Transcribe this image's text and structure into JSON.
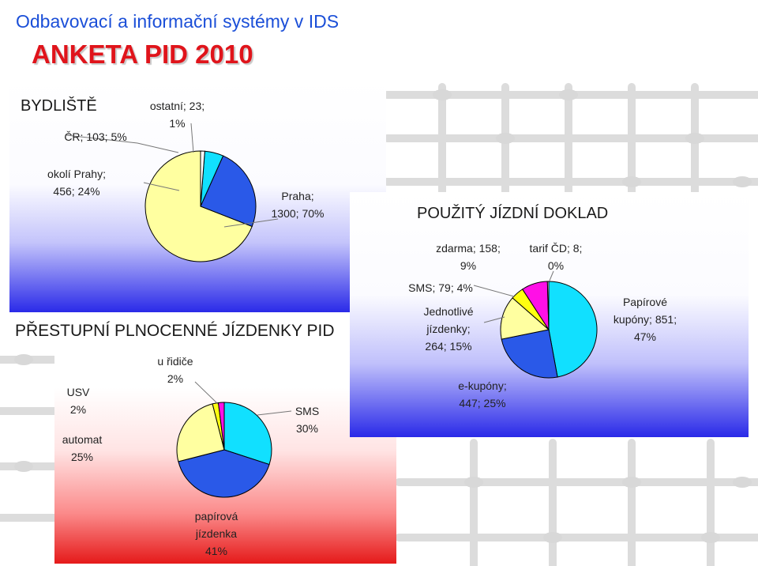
{
  "header": {
    "title": "Odbavovací a informační systémy v IDS",
    "subtitle": "ANKETA PID 2010"
  },
  "colors": {
    "title_blue": "#1b4fd8",
    "subtitle_red": "#e0141b",
    "panel_blue": "#2a2ae8",
    "panel_red": "#e51a1a",
    "slice_yellow": "#ffffa0",
    "slice_blue": "#2a59e8",
    "slice_cyan": "#11e0ff",
    "slice_magenta": "#ff10e6"
  },
  "chart_data": [
    {
      "type": "pie",
      "title": "BYDLIŠTĚ",
      "slices": [
        {
          "label": "Praha",
          "value": 1300,
          "percent": 70,
          "color": "#ffffa0"
        },
        {
          "label": "okolí Prahy",
          "value": 456,
          "percent": 24,
          "color": "#2a59e8"
        },
        {
          "label": "ČR",
          "value": 103,
          "percent": 5,
          "color": "#11e0ff"
        },
        {
          "label": "ostatní",
          "value": 23,
          "percent": 1,
          "color": "#ffffff"
        }
      ],
      "labels": {
        "praha": [
          "Praha;",
          "1300; 70%"
        ],
        "okoli": [
          "okolí Prahy;",
          "456; 24%"
        ],
        "cr": [
          "ČR; 103; 5%"
        ],
        "ostatni": [
          "ostatní; 23;",
          "1%"
        ]
      }
    },
    {
      "type": "pie",
      "title": "PŘESTUPNÍ PLNOCENNÉ JÍZDENKY PID",
      "slices": [
        {
          "label": "SMS",
          "percent": 30,
          "color": "#11e0ff"
        },
        {
          "label": "papírová jízdenka",
          "percent": 41,
          "color": "#2a59e8"
        },
        {
          "label": "automat",
          "percent": 25,
          "color": "#ffffa0"
        },
        {
          "label": "USV",
          "percent": 2,
          "color": "#ffff10"
        },
        {
          "label": "u řidiče",
          "percent": 2,
          "color": "#ff10e6"
        }
      ],
      "labels": {
        "usv": [
          "USV",
          "2%"
        ],
        "automat": [
          "automat",
          "25%"
        ],
        "ridic": [
          "u řidiče",
          "2%"
        ],
        "sms": [
          "SMS",
          "30%"
        ],
        "papirova": [
          "papírová",
          "jízdenka",
          "41%"
        ]
      }
    },
    {
      "type": "pie",
      "title": "POUŽITÝ JÍZDNÍ DOKLAD",
      "slices": [
        {
          "label": "Papírové kupóny",
          "value": 851,
          "percent": 47,
          "color": "#11e0ff"
        },
        {
          "label": "e-kupóny",
          "value": 447,
          "percent": 25,
          "color": "#2a59e8"
        },
        {
          "label": "Jednotlivé jízdenky",
          "value": 264,
          "percent": 15,
          "color": "#ffffa0"
        },
        {
          "label": "SMS",
          "value": 79,
          "percent": 4,
          "color": "#ffff10"
        },
        {
          "label": "zdarma",
          "value": 158,
          "percent": 9,
          "color": "#ff10e6"
        },
        {
          "label": "tarif ČD",
          "value": 8,
          "percent": 0,
          "color": "#ffffff"
        }
      ],
      "labels": {
        "zdarma": [
          "zdarma; 158;",
          "9%"
        ],
        "tarif": [
          "tarif ČD; 8;",
          "0%"
        ],
        "sms": [
          "SMS; 79; 4%"
        ],
        "jednotlive": [
          "Jednotlivé",
          "jízdenky;",
          "264; 15%"
        ],
        "papirove": [
          "Papírové",
          "kupóny; 851;",
          "47%"
        ],
        "ekupony": [
          "e-kupóny;",
          "447; 25%"
        ]
      }
    }
  ]
}
